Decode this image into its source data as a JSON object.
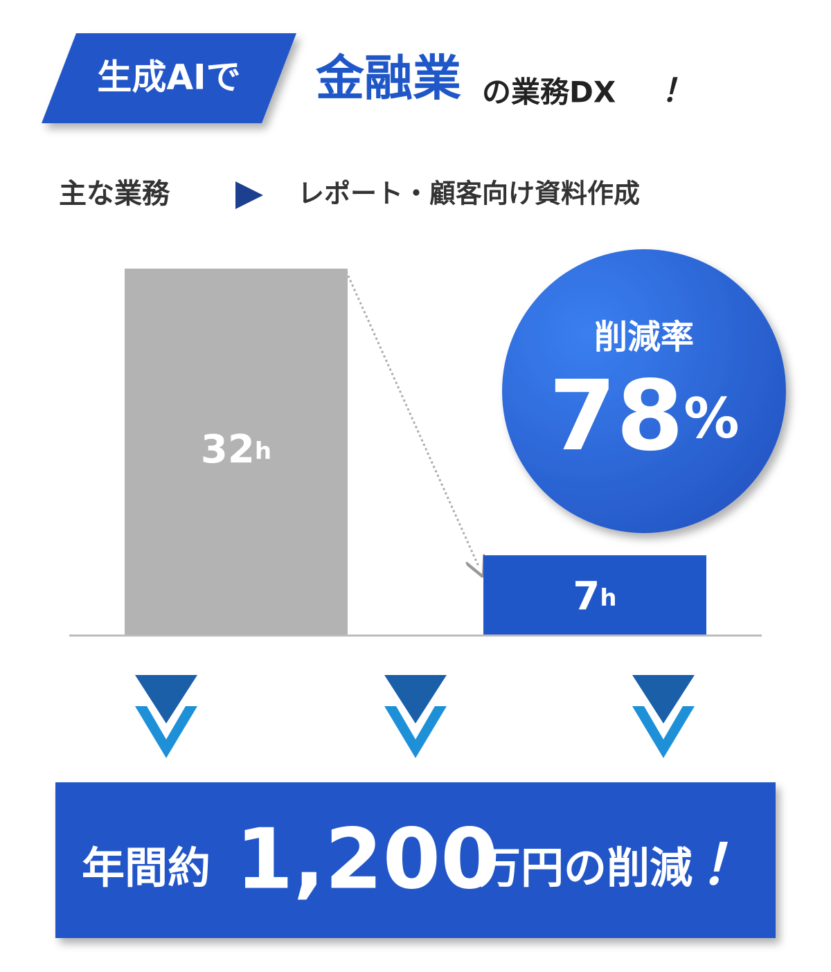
{
  "header": {
    "tag": "生成AIで",
    "title_main": "金融業",
    "title_rest": "の業務DX",
    "title_mark": "！"
  },
  "task": {
    "label": "主な業務",
    "value": "レポート・顧客向け資料作成"
  },
  "chart_data": {
    "type": "bar",
    "values": [
      32,
      7
    ],
    "value_labels": [
      "32h",
      "7h"
    ],
    "colors": [
      "#b3b3b3",
      "#2057c8"
    ]
  },
  "reduction": {
    "label": "削減率",
    "value": "78%"
  },
  "summary": {
    "prefix": "年間約",
    "amount": "1,200",
    "suffix": "万円の削減",
    "mark": "！"
  }
}
